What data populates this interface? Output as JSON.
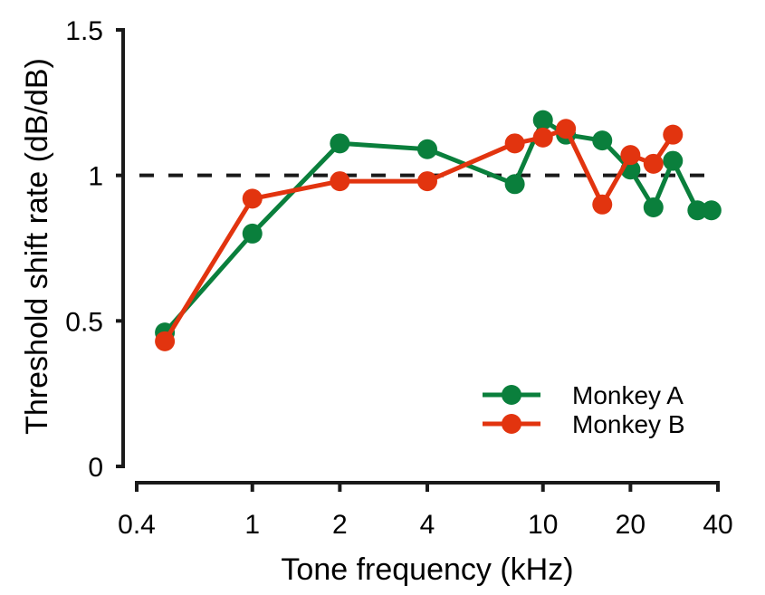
{
  "chart_data": {
    "type": "line",
    "title": "",
    "xlabel": "Tone frequency (kHz)",
    "ylabel": "Threshold shift rate (dB/dB)",
    "xscale": "log",
    "xlim": [
      0.4,
      40
    ],
    "ylim": [
      0,
      1.5
    ],
    "xticks": [
      0.4,
      1,
      2,
      4,
      10,
      20,
      40
    ],
    "xtick_labels": [
      "0.4",
      "1",
      "2",
      "4",
      "10",
      "20",
      "40"
    ],
    "yticks": [
      0,
      0.5,
      1,
      1.5
    ],
    "ytick_labels": [
      "0",
      "0.5",
      "1",
      "1.5"
    ],
    "reference_line": {
      "y": 1,
      "style": "dashed",
      "color": "#1a1a1a"
    },
    "grid": false,
    "legend_position": "bottom-right",
    "series": [
      {
        "name": "Monkey A",
        "color": "#0a7f3c",
        "x": [
          0.5,
          1,
          2,
          4,
          8,
          10,
          12,
          16,
          20,
          24,
          28,
          34,
          38
        ],
        "y": [
          0.46,
          0.8,
          1.11,
          1.09,
          0.97,
          1.19,
          1.14,
          1.12,
          1.02,
          0.89,
          1.05,
          0.88,
          0.88
        ]
      },
      {
        "name": "Monkey B",
        "color": "#e2340f",
        "x": [
          0.5,
          1,
          2,
          4,
          8,
          10,
          12,
          16,
          20,
          24,
          28
        ],
        "y": [
          0.43,
          0.92,
          0.98,
          0.98,
          1.11,
          1.13,
          1.16,
          0.9,
          1.07,
          1.04,
          1.14
        ]
      }
    ]
  }
}
